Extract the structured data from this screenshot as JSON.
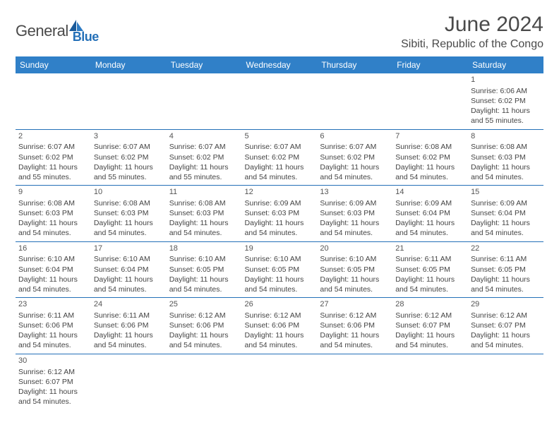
{
  "logo": {
    "text1": "General",
    "text2": "Blue"
  },
  "title": "June 2024",
  "location": "Sibiti, Republic of the Congo",
  "colors": {
    "header_bg": "#3080c8",
    "header_text": "#ffffff",
    "border": "#2470b8",
    "text": "#444444"
  },
  "daysOfWeek": [
    "Sunday",
    "Monday",
    "Tuesday",
    "Wednesday",
    "Thursday",
    "Friday",
    "Saturday"
  ],
  "weeks": [
    [
      null,
      null,
      null,
      null,
      null,
      null,
      {
        "n": "1",
        "sr": "Sunrise: 6:06 AM",
        "ss": "Sunset: 6:02 PM",
        "dl": "Daylight: 11 hours and 55 minutes."
      }
    ],
    [
      {
        "n": "2",
        "sr": "Sunrise: 6:07 AM",
        "ss": "Sunset: 6:02 PM",
        "dl": "Daylight: 11 hours and 55 minutes."
      },
      {
        "n": "3",
        "sr": "Sunrise: 6:07 AM",
        "ss": "Sunset: 6:02 PM",
        "dl": "Daylight: 11 hours and 55 minutes."
      },
      {
        "n": "4",
        "sr": "Sunrise: 6:07 AM",
        "ss": "Sunset: 6:02 PM",
        "dl": "Daylight: 11 hours and 55 minutes."
      },
      {
        "n": "5",
        "sr": "Sunrise: 6:07 AM",
        "ss": "Sunset: 6:02 PM",
        "dl": "Daylight: 11 hours and 54 minutes."
      },
      {
        "n": "6",
        "sr": "Sunrise: 6:07 AM",
        "ss": "Sunset: 6:02 PM",
        "dl": "Daylight: 11 hours and 54 minutes."
      },
      {
        "n": "7",
        "sr": "Sunrise: 6:08 AM",
        "ss": "Sunset: 6:02 PM",
        "dl": "Daylight: 11 hours and 54 minutes."
      },
      {
        "n": "8",
        "sr": "Sunrise: 6:08 AM",
        "ss": "Sunset: 6:03 PM",
        "dl": "Daylight: 11 hours and 54 minutes."
      }
    ],
    [
      {
        "n": "9",
        "sr": "Sunrise: 6:08 AM",
        "ss": "Sunset: 6:03 PM",
        "dl": "Daylight: 11 hours and 54 minutes."
      },
      {
        "n": "10",
        "sr": "Sunrise: 6:08 AM",
        "ss": "Sunset: 6:03 PM",
        "dl": "Daylight: 11 hours and 54 minutes."
      },
      {
        "n": "11",
        "sr": "Sunrise: 6:08 AM",
        "ss": "Sunset: 6:03 PM",
        "dl": "Daylight: 11 hours and 54 minutes."
      },
      {
        "n": "12",
        "sr": "Sunrise: 6:09 AM",
        "ss": "Sunset: 6:03 PM",
        "dl": "Daylight: 11 hours and 54 minutes."
      },
      {
        "n": "13",
        "sr": "Sunrise: 6:09 AM",
        "ss": "Sunset: 6:03 PM",
        "dl": "Daylight: 11 hours and 54 minutes."
      },
      {
        "n": "14",
        "sr": "Sunrise: 6:09 AM",
        "ss": "Sunset: 6:04 PM",
        "dl": "Daylight: 11 hours and 54 minutes."
      },
      {
        "n": "15",
        "sr": "Sunrise: 6:09 AM",
        "ss": "Sunset: 6:04 PM",
        "dl": "Daylight: 11 hours and 54 minutes."
      }
    ],
    [
      {
        "n": "16",
        "sr": "Sunrise: 6:10 AM",
        "ss": "Sunset: 6:04 PM",
        "dl": "Daylight: 11 hours and 54 minutes."
      },
      {
        "n": "17",
        "sr": "Sunrise: 6:10 AM",
        "ss": "Sunset: 6:04 PM",
        "dl": "Daylight: 11 hours and 54 minutes."
      },
      {
        "n": "18",
        "sr": "Sunrise: 6:10 AM",
        "ss": "Sunset: 6:05 PM",
        "dl": "Daylight: 11 hours and 54 minutes."
      },
      {
        "n": "19",
        "sr": "Sunrise: 6:10 AM",
        "ss": "Sunset: 6:05 PM",
        "dl": "Daylight: 11 hours and 54 minutes."
      },
      {
        "n": "20",
        "sr": "Sunrise: 6:10 AM",
        "ss": "Sunset: 6:05 PM",
        "dl": "Daylight: 11 hours and 54 minutes."
      },
      {
        "n": "21",
        "sr": "Sunrise: 6:11 AM",
        "ss": "Sunset: 6:05 PM",
        "dl": "Daylight: 11 hours and 54 minutes."
      },
      {
        "n": "22",
        "sr": "Sunrise: 6:11 AM",
        "ss": "Sunset: 6:05 PM",
        "dl": "Daylight: 11 hours and 54 minutes."
      }
    ],
    [
      {
        "n": "23",
        "sr": "Sunrise: 6:11 AM",
        "ss": "Sunset: 6:06 PM",
        "dl": "Daylight: 11 hours and 54 minutes."
      },
      {
        "n": "24",
        "sr": "Sunrise: 6:11 AM",
        "ss": "Sunset: 6:06 PM",
        "dl": "Daylight: 11 hours and 54 minutes."
      },
      {
        "n": "25",
        "sr": "Sunrise: 6:12 AM",
        "ss": "Sunset: 6:06 PM",
        "dl": "Daylight: 11 hours and 54 minutes."
      },
      {
        "n": "26",
        "sr": "Sunrise: 6:12 AM",
        "ss": "Sunset: 6:06 PM",
        "dl": "Daylight: 11 hours and 54 minutes."
      },
      {
        "n": "27",
        "sr": "Sunrise: 6:12 AM",
        "ss": "Sunset: 6:06 PM",
        "dl": "Daylight: 11 hours and 54 minutes."
      },
      {
        "n": "28",
        "sr": "Sunrise: 6:12 AM",
        "ss": "Sunset: 6:07 PM",
        "dl": "Daylight: 11 hours and 54 minutes."
      },
      {
        "n": "29",
        "sr": "Sunrise: 6:12 AM",
        "ss": "Sunset: 6:07 PM",
        "dl": "Daylight: 11 hours and 54 minutes."
      }
    ],
    [
      {
        "n": "30",
        "sr": "Sunrise: 6:12 AM",
        "ss": "Sunset: 6:07 PM",
        "dl": "Daylight: 11 hours and 54 minutes."
      },
      null,
      null,
      null,
      null,
      null,
      null
    ]
  ]
}
